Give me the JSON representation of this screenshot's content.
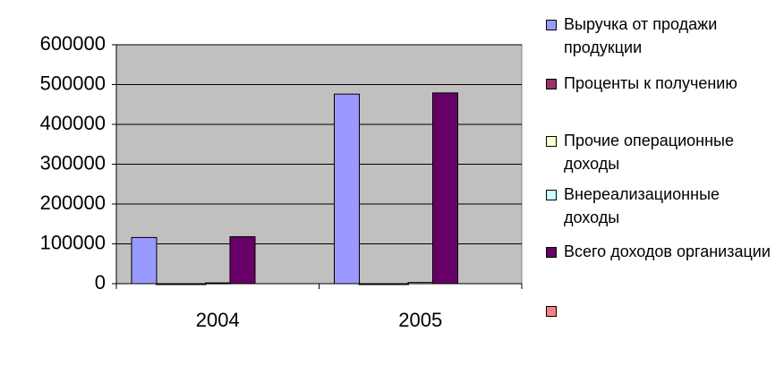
{
  "chart_data": {
    "type": "bar",
    "categories": [
      "2004",
      "2005"
    ],
    "series": [
      {
        "name": "Выручка от продажи продукции",
        "color": "#9999ff",
        "values": [
          116000,
          476000
        ]
      },
      {
        "name": "Проценты к получению",
        "color": "#993366",
        "values": [
          0,
          0
        ]
      },
      {
        "name": "Прочие операционные доходы",
        "color": "#ffffcc",
        "values": [
          0,
          0
        ]
      },
      {
        "name": "Внереализационные доходы",
        "color": "#ccffff",
        "values": [
          2000,
          3000
        ]
      },
      {
        "name": "Всего доходов организации",
        "color": "#660066",
        "values": [
          118000,
          479000
        ]
      },
      {
        "name": null,
        "color": "#ff8080",
        "values": [
          null,
          null
        ]
      }
    ],
    "ylim": [
      0,
      600000
    ],
    "yticks": [
      0,
      100000,
      200000,
      300000,
      400000,
      500000,
      600000
    ],
    "grid": true,
    "plot_background": "#c0c0c0",
    "legend": "right"
  }
}
